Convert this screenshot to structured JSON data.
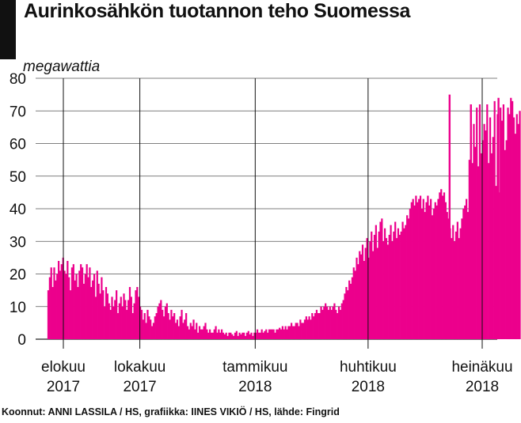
{
  "chart_data": {
    "type": "bar",
    "title": "Aurinkosähkön tuotannon teho Suomessa",
    "ylabel": "megawattia",
    "ylim": [
      0,
      80
    ],
    "yticks": [
      0,
      10,
      20,
      30,
      40,
      50,
      60,
      70,
      80
    ],
    "grid": "horizontal",
    "bar_color": "#ec008c",
    "x_ticks": [
      {
        "line1": "elokuu",
        "line2": "2017",
        "date": "2017-08-01"
      },
      {
        "line1": "lokakuu",
        "line2": "2017",
        "date": "2017-10-01"
      },
      {
        "line1": "tammikuu",
        "line2": "2018",
        "date": "2018-01-01"
      },
      {
        "line1": "huhtikuu",
        "line2": "2018",
        "date": "2018-04-01"
      },
      {
        "line1": "heinäkuu",
        "line2": "2018",
        "date": "2018-07-01"
      }
    ],
    "series": [
      {
        "start_date": "2017-07-20",
        "end_date": "2018-07-31",
        "values": [
          15,
          19,
          22,
          16,
          22,
          18,
          20,
          24,
          21,
          23,
          25,
          21,
          20,
          24,
          19,
          15,
          22,
          23,
          18,
          20,
          16,
          21,
          23,
          22,
          17,
          20,
          23,
          19,
          22,
          16,
          18,
          20,
          13,
          21,
          17,
          14,
          19,
          15,
          10,
          16,
          14,
          11,
          9,
          13,
          10,
          12,
          15,
          8,
          11,
          13,
          10,
          14,
          12,
          9,
          12,
          16,
          13,
          8,
          11,
          15,
          16,
          13,
          10,
          9,
          6,
          8,
          5,
          9,
          7,
          6,
          4,
          5,
          7,
          8,
          10,
          11,
          12,
          9,
          7,
          10,
          11,
          8,
          6,
          9,
          7,
          8,
          5,
          6,
          4,
          7,
          9,
          5,
          6,
          8,
          4,
          3,
          5,
          4,
          6,
          3,
          5,
          2,
          4,
          3,
          3,
          4,
          5,
          3,
          2,
          3,
          2,
          2,
          3,
          4,
          2,
          3,
          2,
          3,
          2,
          1.5,
          2,
          1,
          2,
          2,
          1.5,
          1,
          2,
          2.5,
          1,
          2,
          1.5,
          2,
          2,
          1,
          2,
          2.5,
          1.5,
          2,
          1,
          2,
          2,
          3,
          2,
          2,
          3,
          2,
          2.5,
          3,
          2,
          3,
          3,
          3,
          3,
          2,
          3,
          3,
          3.5,
          3,
          4,
          3,
          4,
          3,
          4,
          4,
          5,
          4,
          4,
          5,
          5,
          4,
          6,
          5,
          5,
          6,
          7,
          6,
          7,
          6,
          8,
          7,
          8,
          9,
          8,
          8,
          10,
          9,
          10,
          11,
          10,
          9,
          10,
          9,
          10,
          11,
          9,
          8,
          10,
          9,
          11,
          12,
          14,
          16,
          15,
          18,
          17,
          19,
          22,
          21,
          25,
          23,
          27,
          26,
          29,
          24,
          28,
          31,
          25,
          30,
          33,
          27,
          32,
          35,
          28,
          33,
          36,
          37,
          30,
          34,
          31,
          29,
          32,
          35,
          30,
          33,
          36,
          31,
          34,
          32,
          33,
          36,
          34,
          35,
          38,
          37,
          40,
          42,
          43,
          41,
          44,
          42,
          43,
          44,
          40,
          43,
          39,
          42,
          44,
          41,
          43,
          38,
          40,
          42,
          41,
          43,
          45,
          46,
          44,
          45,
          42,
          39,
          37,
          34,
          31,
          35,
          30,
          33,
          36,
          31,
          34,
          37,
          40,
          41,
          43,
          39,
          55,
          62,
          54,
          66,
          59,
          71,
          53,
          72,
          57,
          61,
          66,
          64,
          72,
          54,
          68,
          57,
          62,
          73,
          47,
          69,
          45,
          71,
          67,
          72,
          58,
          61,
          71,
          69,
          74,
          73,
          68,
          63,
          69,
          66,
          70
        ]
      }
    ],
    "spikes": [
      {
        "date": "2018-06-05",
        "value": 75
      },
      {
        "date": "2018-06-22",
        "value": 72
      },
      {
        "date": "2018-07-14",
        "value": 74
      }
    ]
  },
  "source": "Koonnut: ANNI LASSILA / HS, grafiikka: IINES VIKIÖ / HS, lähde: Fingrid"
}
